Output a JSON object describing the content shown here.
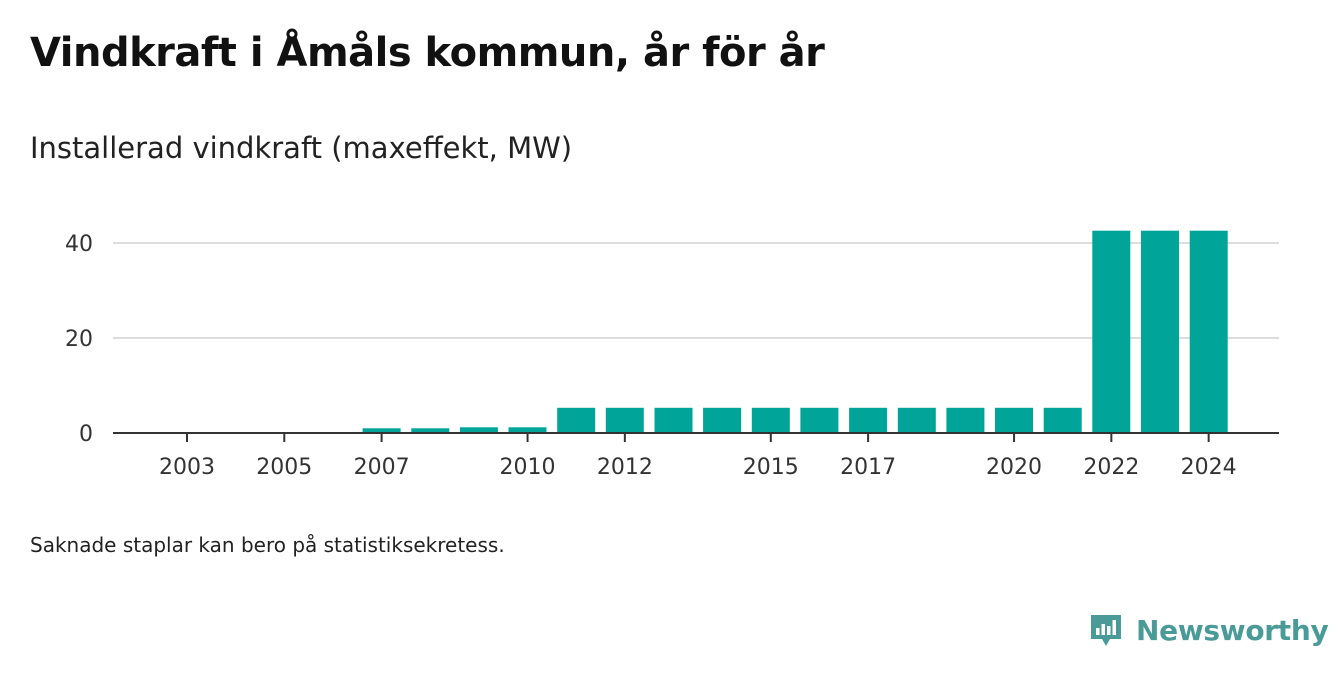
{
  "title": "Vindkraft i Åmåls kommun, år för år",
  "subtitle": "Installerad vindkraft (maxeffekt, MW)",
  "footnote": "Saknade staplar kan bero på statistiksekretess.",
  "brand": {
    "name": "Newsworthy",
    "icon": "newsworthy-logo-icon",
    "color": "#4a9b98"
  },
  "colors": {
    "bar": "#00a499",
    "grid": "#dddddd",
    "axis": "#333333"
  },
  "chart_data": {
    "type": "bar",
    "categories": [
      2003,
      2004,
      2005,
      2006,
      2007,
      2008,
      2009,
      2010,
      2011,
      2012,
      2013,
      2014,
      2015,
      2016,
      2017,
      2018,
      2019,
      2020,
      2021,
      2022,
      2023,
      2024
    ],
    "values": [
      0,
      0,
      0,
      0,
      1,
      1,
      1.2,
      1.2,
      5.3,
      5.3,
      5.3,
      5.3,
      5.3,
      5.3,
      5.3,
      5.3,
      5.3,
      5.3,
      5.3,
      42.6,
      42.6,
      42.6
    ],
    "x_tick_labels": [
      "2003",
      "2005",
      "2007",
      "2010",
      "2012",
      "2015",
      "2017",
      "2020",
      "2022",
      "2024"
    ],
    "y_ticks": [
      0,
      20,
      40
    ],
    "ylim": [
      0,
      45
    ],
    "xlabel": "",
    "ylabel": "",
    "grid": true,
    "legend": "none"
  }
}
